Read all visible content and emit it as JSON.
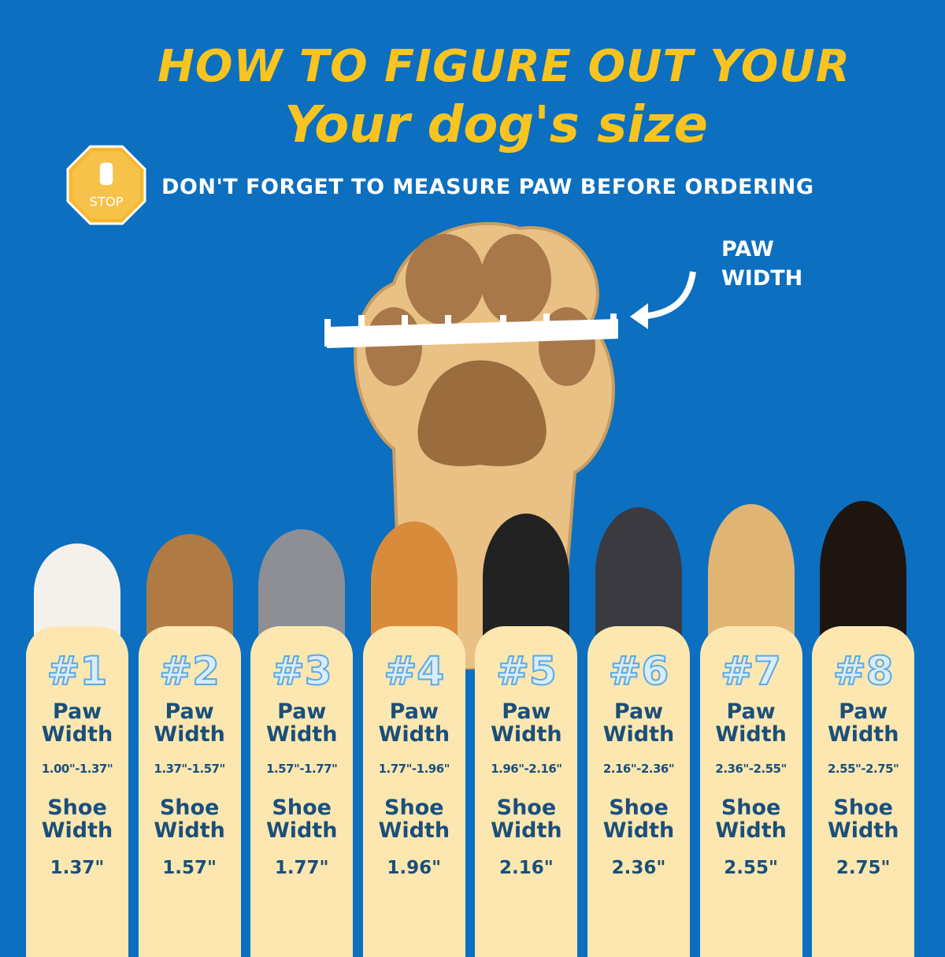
{
  "header": {
    "title_line1": "HOW TO FIGURE OUT YOUR",
    "title_line2": "Your dog's size",
    "stop_sign": "STOP",
    "subtitle": "DON'T FORGET TO MEASURE PAW BEFORE ORDERING"
  },
  "diagram": {
    "label_line1": "PAW",
    "label_line2": "WIDTH"
  },
  "colors": {
    "background": "#0c6fbf",
    "title": "#f9c41f",
    "card": "#fde7b0",
    "text": "#1b4f7a"
  },
  "sizes": [
    {
      "num": "#1",
      "paw_label_1": "Paw",
      "paw_label_2": "Width",
      "paw_range": "1.00\"-1.37\"",
      "shoe_label_1": "Shoe",
      "shoe_label_2": "Width",
      "shoe_width": "1.37\""
    },
    {
      "num": "#2",
      "paw_label_1": "Paw",
      "paw_label_2": "Width",
      "paw_range": "1.37\"-1.57\"",
      "shoe_label_1": "Shoe",
      "shoe_label_2": "Width",
      "shoe_width": "1.57\""
    },
    {
      "num": "#3",
      "paw_label_1": "Paw",
      "paw_label_2": "Width",
      "paw_range": "1.57\"-1.77\"",
      "shoe_label_1": "Shoe",
      "shoe_label_2": "Width",
      "shoe_width": "1.77\""
    },
    {
      "num": "#4",
      "paw_label_1": "Paw",
      "paw_label_2": "Width",
      "paw_range": "1.77\"-1.96\"",
      "shoe_label_1": "Shoe",
      "shoe_label_2": "Width",
      "shoe_width": "1.96\""
    },
    {
      "num": "#5",
      "paw_label_1": "Paw",
      "paw_label_2": "Width",
      "paw_range": "1.96\"-2.16\"",
      "shoe_label_1": "Shoe",
      "shoe_label_2": "Width",
      "shoe_width": "2.16\""
    },
    {
      "num": "#6",
      "paw_label_1": "Paw",
      "paw_label_2": "Width",
      "paw_range": "2.16\"-2.36\"",
      "shoe_label_1": "Shoe",
      "shoe_label_2": "Width",
      "shoe_width": "2.36\""
    },
    {
      "num": "#7",
      "paw_label_1": "Paw",
      "paw_label_2": "Width",
      "paw_range": "2.36\"-2.55\"",
      "shoe_label_1": "Shoe",
      "shoe_label_2": "Width",
      "shoe_width": "2.55\""
    },
    {
      "num": "#8",
      "paw_label_1": "Paw",
      "paw_label_2": "Width",
      "paw_range": "2.55\"-2.75\"",
      "shoe_label_1": "Shoe",
      "shoe_label_2": "Width",
      "shoe_width": "2.75\""
    }
  ]
}
